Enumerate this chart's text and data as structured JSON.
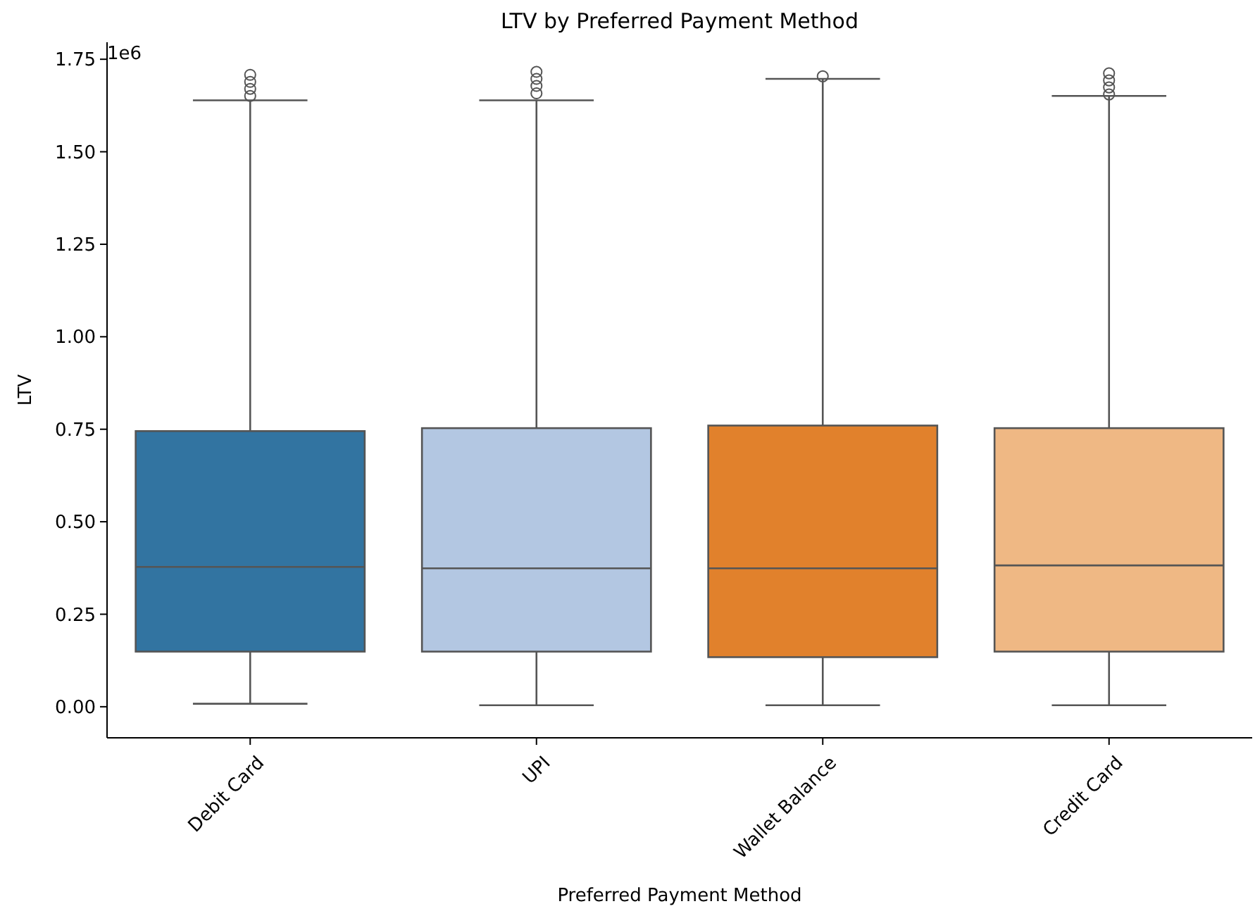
{
  "chart_data": {
    "type": "box",
    "title": "LTV by Preferred Payment Method",
    "xlabel": "Preferred Payment Method",
    "ylabel": "LTV",
    "annotations": [
      "1e6"
    ],
    "categories": [
      "Debit Card",
      "UPI",
      "Wallet Balance",
      "Credit Card"
    ],
    "colors": [
      "#3274a1",
      "#b3c7e2",
      "#e1812c",
      "#efb884"
    ],
    "boxes": [
      {
        "low": 0.008,
        "q1": 0.149,
        "median": 0.378,
        "q3": 0.745,
        "high": 1.639,
        "outliers": [
          1.651,
          1.67,
          1.689,
          1.708
        ]
      },
      {
        "low": 0.004,
        "q1": 0.149,
        "median": 0.374,
        "q3": 0.753,
        "high": 1.639,
        "outliers": [
          1.658,
          1.678,
          1.697,
          1.716
        ]
      },
      {
        "low": 0.004,
        "q1": 0.134,
        "median": 0.374,
        "q3": 0.76,
        "high": 1.697,
        "outliers": [
          1.704
        ]
      },
      {
        "low": 0.004,
        "q1": 0.149,
        "median": 0.382,
        "q3": 0.753,
        "high": 1.651,
        "outliers": [
          1.655,
          1.674,
          1.693,
          1.712
        ]
      }
    ],
    "ylim": [
      -0.084,
      1.796
    ],
    "yticks": [
      {
        "value": 0,
        "label": "0.00"
      },
      {
        "value": 0.25,
        "label": "0.25"
      },
      {
        "value": 0.5,
        "label": "0.50"
      },
      {
        "value": 0.75,
        "label": "0.75"
      },
      {
        "value": 1,
        "label": "1.00"
      },
      {
        "value": 1.25,
        "label": "1.25"
      },
      {
        "value": 1.5,
        "label": "1.50"
      },
      {
        "value": 1.75,
        "label": "1.75"
      }
    ],
    "grid": false,
    "marker": "circle"
  }
}
